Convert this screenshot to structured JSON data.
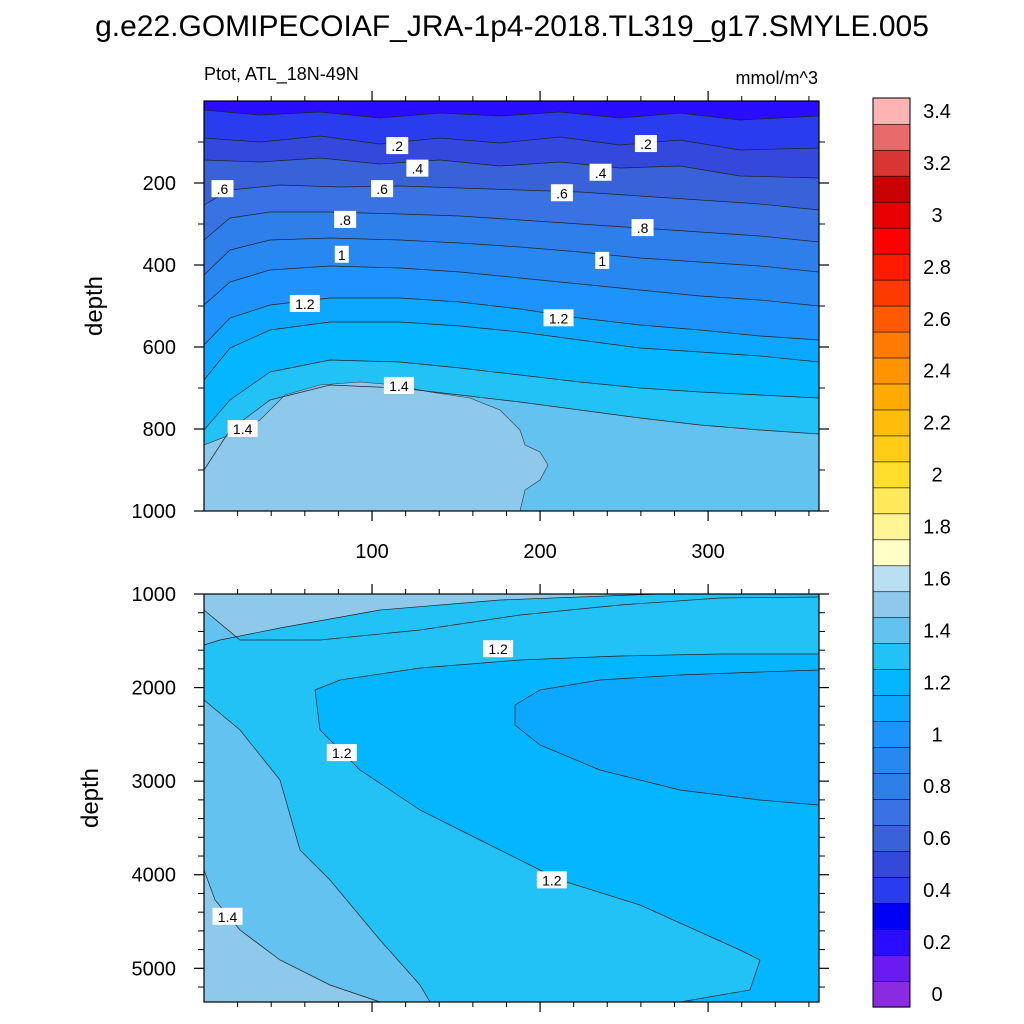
{
  "chart_data": {
    "type": "contour",
    "title": "g.e22.GOMIPECOIAF_JRA-1p4-2018.TL319_g17.SMYLE.005",
    "left_label": "Ptot, ATL_18N-49N",
    "right_label": "mmol/m^3",
    "colorbar": {
      "levels": [
        0,
        0.1,
        0.2,
        0.3,
        0.4,
        0.5,
        0.6,
        0.7,
        0.8,
        0.9,
        1.0,
        1.1,
        1.2,
        1.3,
        1.4,
        1.5,
        1.6,
        1.7,
        1.8,
        1.9,
        2.0,
        2.1,
        2.2,
        2.3,
        2.4,
        2.5,
        2.6,
        2.7,
        2.8,
        2.9,
        3.0,
        3.1,
        3.2,
        3.3,
        3.4,
        3.5,
        3.6
      ],
      "tick_labels": [
        "0",
        "0.2",
        "0.4",
        "0.6",
        "0.8",
        "1",
        "1.2",
        "1.4",
        "1.6",
        "1.8",
        "2",
        "2.2",
        "2.4",
        "2.6",
        "2.8",
        "3",
        "3.2",
        "3.4"
      ],
      "tick_values": [
        0,
        0.2,
        0.4,
        0.6,
        0.8,
        1.0,
        1.2,
        1.4,
        1.6,
        1.8,
        2.0,
        2.2,
        2.4,
        2.6,
        2.8,
        3.0,
        3.2,
        3.4
      ],
      "colors": [
        "#8a2be2",
        "#6a1bf0",
        "#2a0cff",
        "#0000f4",
        "#2a3dee",
        "#3448dc",
        "#3a62d8",
        "#3a72e4",
        "#2f7fea",
        "#2688f0",
        "#1e93fb",
        "#0ca8ff",
        "#03b6ff",
        "#23c2f6",
        "#63c2ef",
        "#8ec9ec",
        "#b8e0f2",
        "#ffffc8",
        "#fff596",
        "#ffea5c",
        "#ffdf2c",
        "#ffcc18",
        "#ffbd0b",
        "#ffaa00",
        "#ff9400",
        "#ff7a00",
        "#ff5a00",
        "#ff3a00",
        "#ff1a00",
        "#ff0000",
        "#e60000",
        "#c80000",
        "#d93535",
        "#e86b6b",
        "#ffb4b4"
      ]
    },
    "panels": [
      {
        "name": "upper",
        "x_range": [
          0,
          366
        ],
        "x_ticks": [
          100,
          200,
          300
        ],
        "x_tick_labels": [
          "100",
          "200",
          "300"
        ],
        "ylabel": "depth",
        "y_range": [
          0,
          1000
        ],
        "y_ticks": [
          200,
          400,
          600,
          800,
          1000
        ],
        "y_tick_labels": [
          "200",
          "400",
          "600",
          "800",
          "1000"
        ],
        "contour_labels": [
          {
            "text": ".2",
            "x": 115,
            "depth": 110
          },
          {
            "text": ".2",
            "x": 263,
            "depth": 105
          },
          {
            "text": ".4",
            "x": 127,
            "depth": 165
          },
          {
            "text": ".4",
            "x": 236,
            "depth": 175
          },
          {
            "text": ".6",
            "x": 11,
            "depth": 215
          },
          {
            "text": ".6",
            "x": 106,
            "depth": 215
          },
          {
            "text": ".6",
            "x": 213,
            "depth": 225
          },
          {
            "text": ".8",
            "x": 84,
            "depth": 290
          },
          {
            "text": ".8",
            "x": 261,
            "depth": 310
          },
          {
            "text": "1",
            "x": 82,
            "depth": 375
          },
          {
            "text": "1",
            "x": 237,
            "depth": 390
          },
          {
            "text": "1.2",
            "x": 60,
            "depth": 495
          },
          {
            "text": "1.2",
            "x": 211,
            "depth": 530
          },
          {
            "text": "1.4",
            "x": 116,
            "depth": 695
          },
          {
            "text": "1.4",
            "x": 23,
            "depth": 800
          }
        ]
      },
      {
        "name": "lower",
        "x_range": [
          0,
          366
        ],
        "ylabel": "depth",
        "y_range": [
          1000,
          5360
        ],
        "y_ticks": [
          1000,
          2000,
          3000,
          4000,
          5000
        ],
        "y_tick_labels": [
          "1000",
          "2000",
          "3000",
          "4000",
          "5000"
        ],
        "contour_labels": [
          {
            "text": "1.2",
            "x": 175,
            "depth": 1590
          },
          {
            "text": "1.2",
            "x": 82,
            "depth": 2700
          },
          {
            "text": "1.2",
            "x": 207,
            "depth": 4060
          },
          {
            "text": "1.4",
            "x": 14,
            "depth": 4450
          }
        ]
      }
    ]
  }
}
